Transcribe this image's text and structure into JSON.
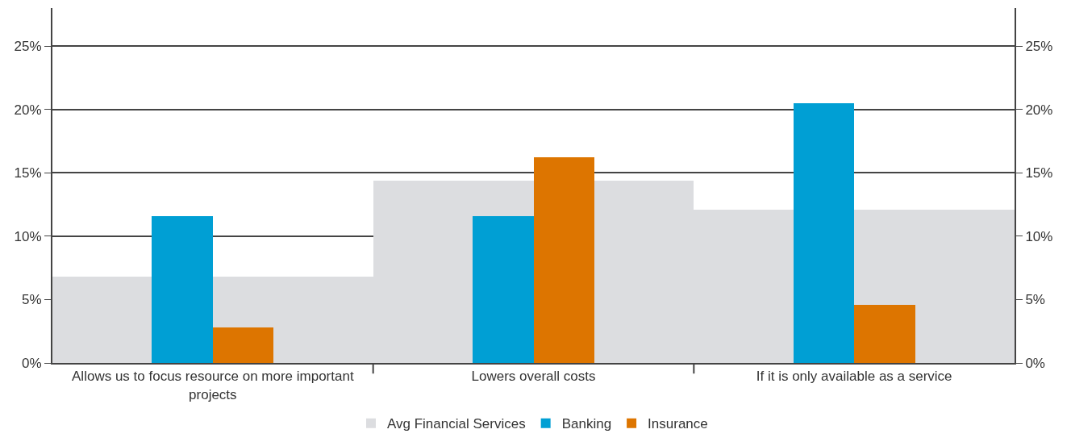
{
  "chart_data": {
    "type": "bar",
    "categories": [
      "Allows us to focus resource on more important projects",
      "Lowers overall costs",
      "If it is only available as a service"
    ],
    "series": [
      {
        "name": "Avg Financial Services",
        "color": "#dcdde0",
        "values": [
          6.8,
          14.4,
          12.1
        ]
      },
      {
        "name": "Banking",
        "color": "#009fd4",
        "values": [
          11.6,
          11.6,
          20.5
        ]
      },
      {
        "name": "Insurance",
        "color": "#dd7500",
        "values": [
          2.8,
          16.2,
          4.6
        ]
      }
    ],
    "ylim": [
      0,
      28
    ],
    "yticks": [
      {
        "value": 0,
        "label": "0%"
      },
      {
        "value": 5,
        "label": "5%"
      },
      {
        "value": 10,
        "label": "10%"
      },
      {
        "value": 15,
        "label": "15%"
      },
      {
        "value": 20,
        "label": "20%"
      },
      {
        "value": 25,
        "label": "25%"
      }
    ],
    "y2lim": [
      0,
      28
    ],
    "y2ticks": [
      {
        "value": 0,
        "label": "0%"
      },
      {
        "value": 5,
        "label": "5%"
      },
      {
        "value": 10,
        "label": "10%"
      },
      {
        "value": 15,
        "label": "15%"
      },
      {
        "value": 20,
        "label": "20%"
      },
      {
        "value": 25,
        "label": "25%"
      }
    ],
    "grid": "y",
    "legend": "bottom"
  }
}
